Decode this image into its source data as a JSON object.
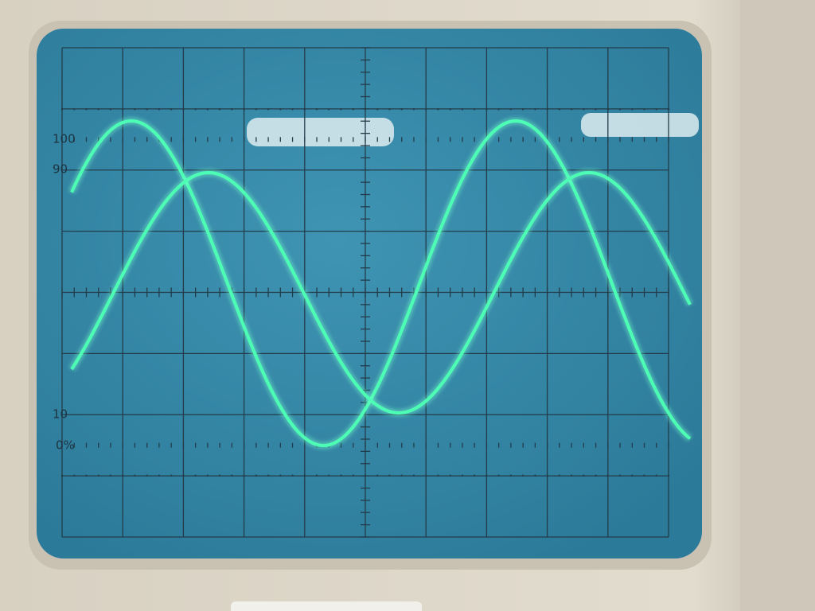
{
  "graticule_labels": [
    "100",
    "90",
    "10",
    "0%"
  ]
}
